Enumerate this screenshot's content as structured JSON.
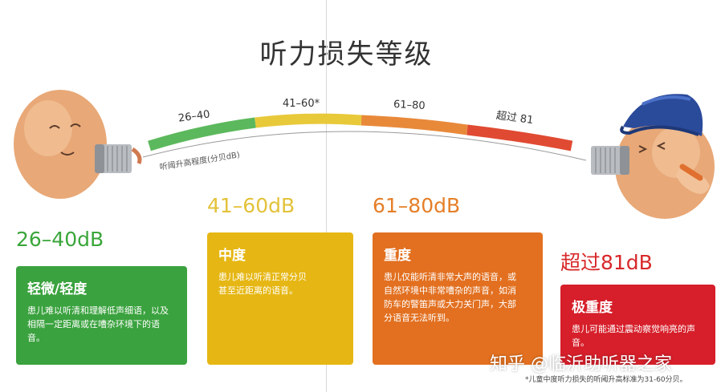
{
  "title": "听力损失等级",
  "arc": {
    "segments": [
      {
        "label": "26–40",
        "color": "#5cb85c"
      },
      {
        "label": "41–60*",
        "color": "#e8c93a"
      },
      {
        "label": "61–80",
        "color": "#e8893a"
      },
      {
        "label": "超过 81",
        "color": "#e04a32"
      }
    ],
    "axis_label": "听阈升高程度(分贝dB)"
  },
  "levels": [
    {
      "range": "26–40dB",
      "range_color": "#3aa63a",
      "name": "轻微/轻度",
      "description": "患儿难以听清和理解低声细语，以及相隔一定距离或在嘈杂环境下的语音。",
      "card_color": "#3aa23e"
    },
    {
      "range": "41–60dB",
      "range_color": "#e3c23a",
      "name": "中度",
      "description": "患儿难以听清正常分贝甚至近距离的语音。",
      "card_color": "#e6b714"
    },
    {
      "range": "61–80dB",
      "range_color": "#e57f28",
      "name": "重度",
      "description": "患儿仅能听清非常大声的语音，或自然环境中非常嘈杂的声音，如消防车的警笛声或大力关门声，大部分语音无法听到。",
      "card_color": "#e27020"
    },
    {
      "range": "超过81dB",
      "range_color": "#d8282a",
      "name": "极重度",
      "description": "患儿可能通过震动察觉响亮的声音。",
      "card_color": "#d61f2a"
    }
  ],
  "watermark": "知乎 @临沂助听器之家",
  "footnote": "*儿童中度听力损失的听阈升高标准为31-60分贝。"
}
